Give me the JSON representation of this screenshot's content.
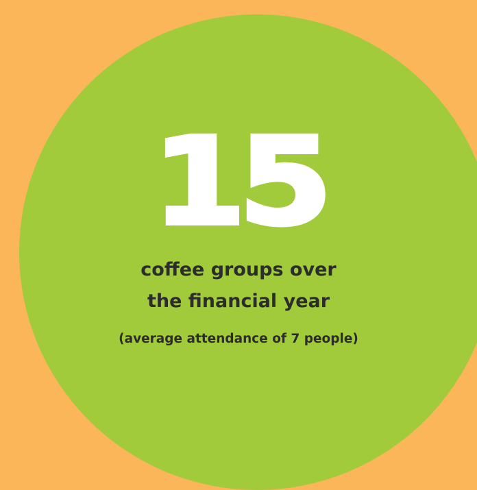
{
  "colors": {
    "background": "#fbb659",
    "circle": "#a2cb3b",
    "number": "#ffffff",
    "text": "#2c2c2c"
  },
  "stat": {
    "value": "15",
    "description_line1": "coffee groups over",
    "description_line2": "the financial year",
    "note": "(average attendance of 7 people)"
  }
}
